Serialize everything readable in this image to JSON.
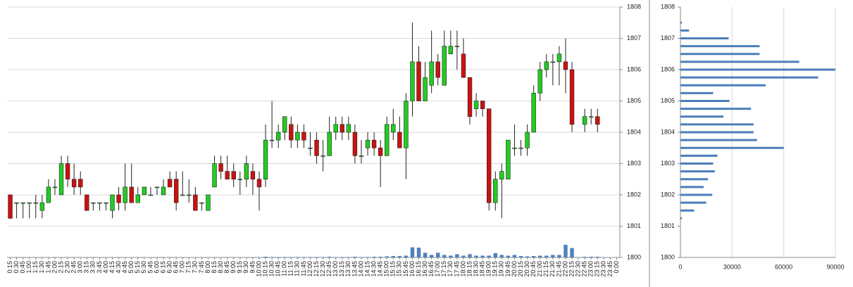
{
  "chart_data": [
    {
      "type": "candlestick",
      "categories": [
        "0:15",
        "0:30",
        "0:45",
        "1:00",
        "1:15",
        "1:30",
        "1:45",
        "2:00",
        "2:15",
        "2:30",
        "2:45",
        "3:00",
        "3:15",
        "3:30",
        "3:45",
        "4:00",
        "4:15",
        "4:30",
        "4:45",
        "5:00",
        "5:15",
        "5:30",
        "5:45",
        "6:00",
        "6:15",
        "6:30",
        "6:45",
        "7:00",
        "7:15",
        "7:30",
        "7:45",
        "8:00",
        "8:15",
        "8:30",
        "8:45",
        "9:00",
        "9:15",
        "9:30",
        "9:45",
        "10:00",
        "10:15",
        "10:30",
        "10:45",
        "11:00",
        "11:15",
        "11:30",
        "11:45",
        "12:00",
        "12:15",
        "12:30",
        "12:45",
        "13:00",
        "13:15",
        "13:30",
        "13:45",
        "14:00",
        "14:15",
        "14:30",
        "14:45",
        "15:00",
        "15:15",
        "15:30",
        "15:45",
        "16:00",
        "16:15",
        "16:30",
        "16:45",
        "17:00",
        "17:15",
        "17:30",
        "17:45",
        "18:00",
        "18:15",
        "18:30",
        "18:45",
        "19:00",
        "19:15",
        "19:30",
        "19:45",
        "20:00",
        "20:15",
        "20:30",
        "20:45",
        "21:00",
        "21:15",
        "21:30",
        "21:45",
        "22:00",
        "22:15",
        "22:30",
        "22:45",
        "23:00",
        "23:15",
        "23:30",
        "23:45",
        "0:00"
      ],
      "open": [
        1802,
        1801.75,
        1801.75,
        1801.75,
        1801.75,
        1801.5,
        1801.75,
        1802.25,
        1802,
        1803,
        1802.5,
        1802.5,
        1802,
        1801.75,
        1801.75,
        1801.75,
        1801.5,
        1802,
        1801.75,
        1802.25,
        1801.75,
        1802,
        1802,
        1802.25,
        1802,
        1802.5,
        1802.5,
        1802,
        1802,
        1802,
        1801.75,
        1801.5,
        1802.25,
        1803,
        1802.75,
        1802.75,
        1802.5,
        1802.5,
        1802.75,
        1802.5,
        1802.5,
        1803.75,
        1803.75,
        1804,
        1804.25,
        1803.75,
        1804,
        1803.5,
        1803.75,
        1803.25,
        1803.25,
        1804,
        1804.25,
        1804,
        1804,
        1803.25,
        1803.5,
        1803.75,
        1803.5,
        1803.25,
        1804,
        1804,
        1803.5,
        1805,
        1806.25,
        1805,
        1805.5,
        1806.25,
        1805.5,
        1806.5,
        1806.75,
        1806.5,
        1805.75,
        1804.75,
        1805,
        1804.75,
        1801.75,
        1802.5,
        1802.5,
        1803.5,
        1803.5,
        1803.5,
        1804,
        1805.25,
        1806,
        1806.25,
        1806.25,
        1806.25,
        1806,
        null,
        1804.25,
        1804.5,
        1804.5,
        null,
        null,
        null
      ],
      "high": [
        1802,
        1801.75,
        1801.75,
        1801.75,
        1802,
        1802,
        1802.5,
        1802.5,
        1803.25,
        1803.25,
        1803,
        1802.75,
        1802,
        1801.75,
        1801.75,
        1801.75,
        1802,
        1802.25,
        1803,
        1803,
        1802.25,
        1802.25,
        1802.25,
        1802.25,
        1802.5,
        1802.75,
        1802.75,
        1802.75,
        1802.5,
        1802.25,
        1801.75,
        1802,
        1803.25,
        1803.25,
        1803.25,
        1803,
        1802.75,
        1803.25,
        1803,
        1802.75,
        1804.25,
        1805,
        1804.25,
        1804.5,
        1804.5,
        1804.25,
        1804.25,
        1804,
        1804,
        1803.75,
        1804.5,
        1804.5,
        1804.5,
        1804.5,
        1804.25,
        1803.75,
        1804,
        1804,
        1803.75,
        1804.5,
        1804.75,
        1804.5,
        1805.25,
        1807.5,
        1806.75,
        1806.25,
        1807.25,
        1806.5,
        1807.25,
        1807.25,
        1807.25,
        1807,
        1805.75,
        1805.25,
        1805,
        1804.75,
        1802.75,
        1803,
        1803.75,
        1804.25,
        1803.75,
        1804.25,
        1805.5,
        1806.25,
        1806.5,
        1806.5,
        1806.75,
        1807,
        1806.25,
        null,
        1804.75,
        1804.75,
        1804.75,
        null,
        null,
        null
      ],
      "low": [
        1801.25,
        1801.25,
        1801.25,
        1801.25,
        1801.25,
        1801.25,
        1801.75,
        1802,
        1802,
        1802.25,
        1802,
        1802,
        1801.5,
        1801.5,
        1801.5,
        1801.5,
        1801.25,
        1801.5,
        1801.5,
        1801.75,
        1801.75,
        1802,
        1802,
        1802,
        1802,
        1802.25,
        1801.5,
        1802,
        1801.75,
        1801.5,
        1801.5,
        1801.5,
        1802.25,
        1802.5,
        1802.5,
        1802.25,
        1802,
        1802.25,
        1802,
        1801.5,
        1802.25,
        1803.5,
        1803.5,
        1803.75,
        1803.5,
        1803.5,
        1803.5,
        1803.25,
        1803,
        1802.75,
        1803.25,
        1803.75,
        1803.75,
        1803.75,
        1803,
        1803,
        1803.25,
        1803.25,
        1802.25,
        1803.25,
        1803.75,
        1803.5,
        1802.5,
        1804.5,
        1805,
        1805,
        1805.25,
        1805.5,
        1805.5,
        1806.5,
        1806,
        1805.75,
        1804.25,
        1804.5,
        1804.5,
        1801.5,
        1801.5,
        1801.25,
        1802.5,
        1803.25,
        1803.25,
        1803.25,
        1804,
        1805,
        1805.75,
        1805.5,
        1805.5,
        1805.25,
        1804,
        null,
        1804,
        1804.25,
        1804,
        null,
        null,
        null
      ],
      "close": [
        1801.25,
        1801.75,
        1801.75,
        1801.75,
        1801.75,
        1801.75,
        1802.25,
        1802.25,
        1803,
        1802.5,
        1802.25,
        1802.25,
        1801.5,
        1801.75,
        1801.75,
        1801.75,
        1802,
        1801.75,
        1802.25,
        1801.75,
        1802,
        1802.25,
        1802,
        1802.25,
        1802.25,
        1802.25,
        1801.75,
        1802,
        1802,
        1801.5,
        1801.75,
        1802,
        1803,
        1802.75,
        1802.5,
        1802.5,
        1802.5,
        1803,
        1802.5,
        1802.25,
        1803.75,
        1803.75,
        1804,
        1804.5,
        1803.75,
        1804,
        1803.75,
        1803.5,
        1803.25,
        1803.25,
        1804,
        1804.25,
        1804,
        1804.25,
        1803.25,
        1803.25,
        1803.75,
        1803.5,
        1803.25,
        1804.25,
        1804.25,
        1803.5,
        1805,
        1806.25,
        1805,
        1805.75,
        1806.25,
        1805.75,
        1806.75,
        1806.75,
        1806.75,
        1805.75,
        1804.5,
        1805,
        1804.75,
        1801.75,
        1802.5,
        1802.75,
        1803.75,
        1803.5,
        1803.5,
        1804,
        1805.25,
        1806,
        1806.25,
        1806.25,
        1806.5,
        1806,
        1804.25,
        null,
        1804.5,
        1804.5,
        1804.25,
        null,
        null,
        null
      ],
      "volume": [
        80,
        40,
        40,
        40,
        40,
        60,
        60,
        60,
        80,
        80,
        60,
        60,
        60,
        40,
        40,
        40,
        60,
        60,
        80,
        60,
        40,
        40,
        40,
        40,
        60,
        60,
        60,
        40,
        40,
        40,
        40,
        40,
        60,
        60,
        60,
        60,
        60,
        60,
        60,
        60,
        200,
        120,
        120,
        120,
        120,
        120,
        120,
        120,
        120,
        120,
        200,
        120,
        120,
        120,
        200,
        120,
        120,
        200,
        200,
        300,
        400,
        400,
        500,
        2800,
        2700,
        1300,
        700,
        1300,
        700,
        500,
        900,
        500,
        900,
        500,
        500,
        500,
        1200,
        700,
        500,
        700,
        400,
        300,
        400,
        500,
        500,
        700,
        700,
        3500,
        2600,
        null,
        200,
        200,
        200,
        null,
        null,
        null
      ],
      "up_color": "#22cc22",
      "down_color": "#cc1111",
      "volume_color": "#4f81bd",
      "ylim": [
        1800,
        1808
      ],
      "yticks": [
        1800,
        1801,
        1802,
        1803,
        1804,
        1805,
        1806,
        1807,
        1808
      ],
      "grid": true
    },
    {
      "type": "barh",
      "levels": [
        1807.5,
        1807.25,
        1807,
        1806.75,
        1806.5,
        1806.25,
        1806,
        1805.75,
        1805.5,
        1805.25,
        1805,
        1804.75,
        1804.5,
        1804.25,
        1804,
        1803.75,
        1803.5,
        1803.25,
        1803,
        1802.75,
        1802.5,
        1802.25,
        1802,
        1801.75,
        1801.5,
        1801.25
      ],
      "values": [
        800,
        5000,
        28000,
        46000,
        46000,
        69000,
        90000,
        80000,
        49500,
        19000,
        28500,
        41000,
        25000,
        42500,
        42500,
        44500,
        60000,
        21500,
        19000,
        20000,
        16000,
        13500,
        18500,
        15000,
        8000,
        800
      ],
      "color": "#4a7ebb",
      "xlim": [
        0,
        90000
      ],
      "xticks": [
        0,
        30000,
        60000,
        90000
      ],
      "ylim": [
        1800,
        1808
      ],
      "yticks": [
        1800,
        1801,
        1802,
        1803,
        1804,
        1805,
        1806,
        1807,
        1808
      ],
      "grid": true
    }
  ]
}
